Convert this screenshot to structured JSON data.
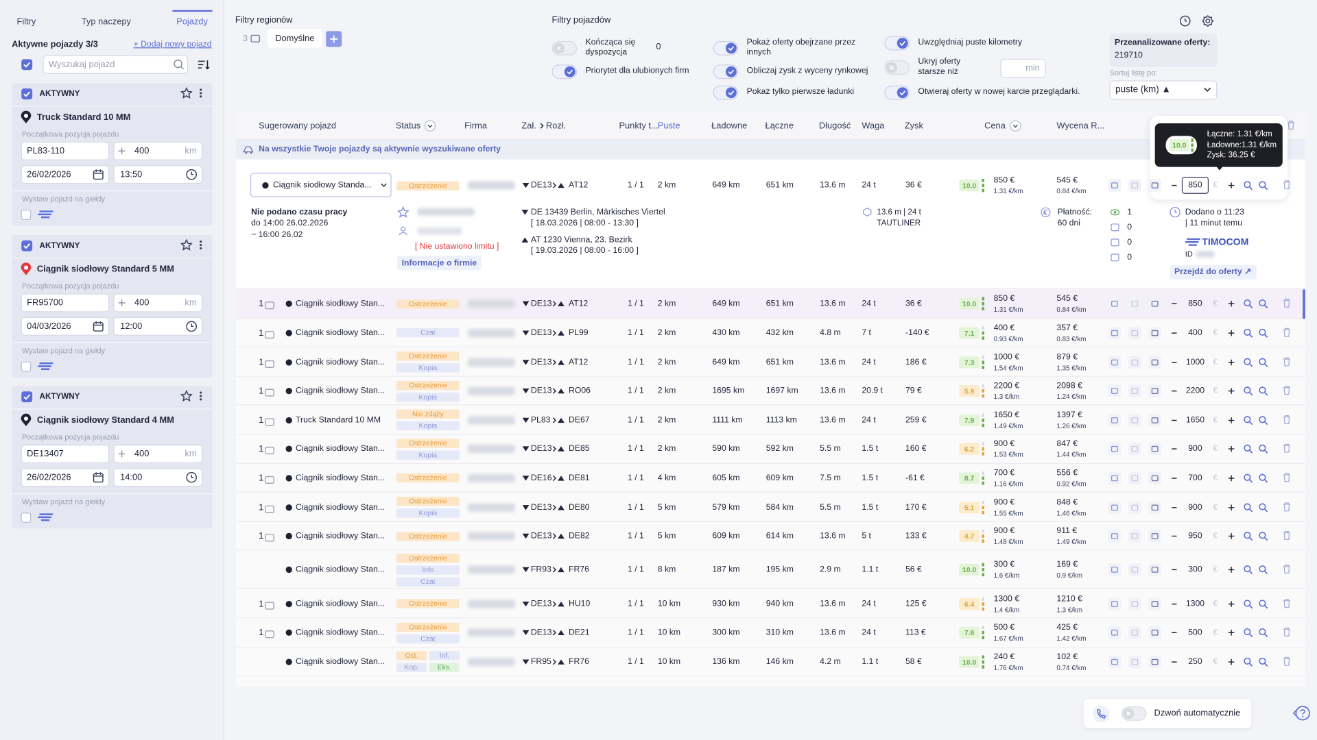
{
  "sidebar": {
    "tabs": [
      "Filtry",
      "Typ naczepy",
      "Pojazdy"
    ],
    "active_vehicles": "Aktywne pojazdy 3/3",
    "add_vehicle": "+ Dodaj nowy pojazd",
    "search_placeholder": "Wyszukaj pojazd",
    "vehicles": [
      {
        "status": "AKTYWNY",
        "name": "Truck Standard 10 MM",
        "pin_color": "#1f2233",
        "position_label": "Początkowa pozycja pojazdu",
        "postcode": "PL83-110",
        "radius": "400",
        "unit": "km",
        "date": "26/02/2026",
        "time": "13:50",
        "exchange_label": "Wystaw pojazd na giełdy"
      },
      {
        "status": "AKTYWNY",
        "name": "Ciągnik siodłowy Standard 5 MM",
        "pin_color": "#e0393e",
        "position_label": "Początkowa pozycja pojazdu",
        "postcode": "FR95700",
        "radius": "400",
        "unit": "km",
        "date": "04/03/2026",
        "time": "12:00",
        "exchange_label": "Wystaw pojazd na giełdy"
      },
      {
        "status": "AKTYWNY",
        "name": "Ciągnik siodłowy Standard 4 MM",
        "pin_color": "#1f2233",
        "position_label": "Początkowa pozycja pojazdu",
        "postcode": "DE13407",
        "radius": "400",
        "unit": "km",
        "date": "26/02/2026",
        "time": "14:00",
        "exchange_label": "Wystaw pojazd na giełdy"
      }
    ]
  },
  "filters": {
    "regions_title": "Filtry regionów",
    "region_count": "3",
    "region_name": "Domyślne",
    "vehicles_title": "Filtry pojazdów",
    "options": [
      {
        "label": "Kończąca się dyspozycja",
        "checked": false
      },
      {
        "label": "Priorytet dla ulubionych firm",
        "checked": true
      },
      {
        "label": "Pokaż oferty obejrzane przez innych",
        "checked": true
      },
      {
        "label": "Obliczaj zysk z wyceny rynkowej",
        "checked": true
      },
      {
        "label": "Pokaż tylko pierwsze ładunki",
        "checked": true
      },
      {
        "label": "Uwzględniaj puste kilometry",
        "checked": true
      },
      {
        "label": "Ukryj oferty starsze niż",
        "checked": false
      },
      {
        "label": "Otwieraj oferty w nowej karcie przeglądarki.",
        "checked": true
      }
    ],
    "ending_value": "0",
    "older_unit": "min",
    "analyzed_label": "Przeanalizowane oferty:",
    "analyzed_value": "219710",
    "sort_label": "Sortuj listę po:",
    "sort_value": "puste (km) ▲"
  },
  "table": {
    "headers": [
      "Sugerowany pojazd",
      "Status",
      "Firma",
      "Zał.",
      "Rozł.",
      "Punkty t...",
      "Puste",
      "Ładowne",
      "Łączne",
      "Długość",
      "Waga",
      "Zysk",
      "Cena",
      "Wycena R..."
    ],
    "notice": "Na wszystkie Twoje pojazdy są aktywnie wyszukiwane oferty",
    "currency": "€",
    "expanded": {
      "vehicle": "Ciągnik siodłowy Standa...",
      "statuses": [
        "Ostrzeżenie"
      ],
      "from": "DE13",
      "to": "AT12",
      "points": "1 / 1",
      "empty": "2 km",
      "loaded": "649 km",
      "total": "651 km",
      "length": "13.6 m",
      "weight": "24 t",
      "profit": "36 €",
      "score": "10.0",
      "price": "850 €",
      "price_per_km": "1.31 €/km",
      "valuation": "545 €",
      "valuation_per_km": "0.84 €/km",
      "offer": "850",
      "work_time": "Nie podano czasu pracy",
      "work_until": "do 14:00 26.02.2026",
      "work_eta": "~ 16:00 26.02",
      "limit": "[ Nie ustawiono limitu ]",
      "company_info": "Informacje o firmie",
      "load_place": "DE 13439 Berlin, Märkisches Viertel",
      "load_date": "[ 18.03.2026 | 08:00 - 13:30 ]",
      "unload_place": "AT 1230 Vienna, 23. Bezirk",
      "unload_date": "[ 19.03.2026 | 08:00 - 16:00 ]",
      "cargo": "13.6 m | 24 t",
      "trailer": "TAUTLINER",
      "payment_label": "Płatność:",
      "payment_value": "60 dni",
      "counters": [
        "1",
        "0",
        "0",
        "0"
      ],
      "added": "Dodano o 11:23",
      "added_ago": "| 11 minut temu",
      "exchange": "TIMOCOM",
      "id_label": "ID",
      "open_offer": "Przejdź do oferty ↗"
    },
    "tooltip": {
      "score": "10.0",
      "total": "Łączne: 1.31 €/km",
      "loaded": "Ładowne:1.31 €/km",
      "profit": "Zysk: 36.25 €"
    },
    "rows": [
      {
        "count": "1",
        "vehicle": "Ciągnik siodłowy Stan...",
        "statuses": [
          "Ostrzeżenie"
        ],
        "from": "DE13",
        "to": "AT12",
        "points": "1 / 1",
        "empty": "2 km",
        "loaded": "649 km",
        "total": "651 km",
        "length": "13.6 m",
        "weight": "24 t",
        "profit": "36 €",
        "score": "10.0",
        "price": "850 €",
        "price_per_km": "1.31 €/km",
        "valuation": "545 €",
        "valuation_per_km": "0.84 €/km",
        "offer": "850"
      },
      {
        "count": "1",
        "vehicle": "Ciągnik siodłowy Stan...",
        "statuses": [
          "Czat"
        ],
        "from": "DE13",
        "to": "PL99",
        "points": "1 / 1",
        "empty": "2 km",
        "loaded": "430 km",
        "total": "432 km",
        "length": "4.8 m",
        "weight": "7 t",
        "profit": "-140 €",
        "score": "7.1",
        "price": "400 €",
        "price_per_km": "0.93 €/km",
        "valuation": "357 €",
        "valuation_per_km": "0.83 €/km",
        "offer": "400"
      },
      {
        "count": "1",
        "vehicle": "Ciągnik siodłowy Stan...",
        "statuses": [
          "Ostrzeżenie",
          "Kopia"
        ],
        "from": "DE13",
        "to": "AT12",
        "points": "1 / 1",
        "empty": "2 km",
        "loaded": "649 km",
        "total": "651 km",
        "length": "13.6 m",
        "weight": "24 t",
        "profit": "186 €",
        "score": "7.3",
        "price": "1000 €",
        "price_per_km": "1.54 €/km",
        "valuation": "879 €",
        "valuation_per_km": "1.35 €/km",
        "offer": "1000"
      },
      {
        "count": "1",
        "vehicle": "Ciągnik siodłowy Stan...",
        "statuses": [
          "Ostrzeżenie",
          "Kopia"
        ],
        "from": "DE13",
        "to": "RO06",
        "points": "1 / 1",
        "empty": "2 km",
        "loaded": "1695 km",
        "total": "1697 km",
        "length": "13.6 m",
        "weight": "20.9 t",
        "profit": "79 €",
        "score": "5.9",
        "price": "2200 €",
        "price_per_km": "1.3 €/km",
        "valuation": "2098 €",
        "valuation_per_km": "1.24 €/km",
        "offer": "2200"
      },
      {
        "count": "1",
        "vehicle": "Truck Standard 10 MM",
        "statuses": [
          "Nie zdąży",
          "Kopia"
        ],
        "from": "PL83",
        "to": "DE67",
        "points": "1 / 1",
        "empty": "2 km",
        "loaded": "1111 km",
        "total": "1113 km",
        "length": "13.6 m",
        "weight": "24 t",
        "profit": "259 €",
        "score": "7.9",
        "price": "1650 €",
        "price_per_km": "1.49 €/km",
        "valuation": "1397 €",
        "valuation_per_km": "1.26 €/km",
        "offer": "1650"
      },
      {
        "count": "1",
        "vehicle": "Ciągnik siodłowy Stan...",
        "statuses": [
          "Ostrzeżenie",
          "Kopia"
        ],
        "from": "DE13",
        "to": "DE85",
        "points": "1 / 1",
        "empty": "2 km",
        "loaded": "590 km",
        "total": "592 km",
        "length": "5.5 m",
        "weight": "1.5 t",
        "profit": "160 €",
        "score": "6.2",
        "price": "900 €",
        "price_per_km": "1.53 €/km",
        "valuation": "847 €",
        "valuation_per_km": "1.44 €/km",
        "offer": "900"
      },
      {
        "count": "1",
        "vehicle": "Ciągnik siodłowy Stan...",
        "statuses": [
          "Ostrzeżenie"
        ],
        "from": "DE16",
        "to": "DE81",
        "points": "1 / 1",
        "empty": "4 km",
        "loaded": "605 km",
        "total": "609 km",
        "length": "7.5 m",
        "weight": "1.5 t",
        "profit": "-61 €",
        "score": "8.7",
        "price": "700 €",
        "price_per_km": "1.16 €/km",
        "valuation": "556 €",
        "valuation_per_km": "0.92 €/km",
        "offer": "700"
      },
      {
        "count": "1",
        "vehicle": "Ciągnik siodłowy Stan...",
        "statuses": [
          "Ostrzeżenie",
          "Kopia"
        ],
        "from": "DE13",
        "to": "DE80",
        "points": "1 / 1",
        "empty": "5 km",
        "loaded": "579 km",
        "total": "584 km",
        "length": "5.5 m",
        "weight": "1.5 t",
        "profit": "170 €",
        "score": "5.1",
        "price": "900 €",
        "price_per_km": "1.55 €/km",
        "valuation": "848 €",
        "valuation_per_km": "1.46 €/km",
        "offer": "900"
      },
      {
        "count": "1",
        "vehicle": "Ciągnik siodłowy Stan...",
        "statuses": [
          "Ostrzeżenie"
        ],
        "from": "DE13",
        "to": "DE82",
        "points": "1 / 1",
        "empty": "5 km",
        "loaded": "609 km",
        "total": "614 km",
        "length": "13.6 m",
        "weight": "5 t",
        "profit": "133 €",
        "score": "4.7",
        "price": "900 €",
        "price_per_km": "1.48 €/km",
        "valuation": "911 €",
        "valuation_per_km": "1.49 €/km",
        "offer": "950"
      },
      {
        "count": null,
        "vehicle": "Ciągnik siodłowy Stan...",
        "statuses": [
          "Ostrzeżenie",
          "Info",
          "Czat"
        ],
        "from": "FR93",
        "to": "FR76",
        "points": "1 / 1",
        "empty": "8 km",
        "loaded": "187 km",
        "total": "195 km",
        "length": "2.9 m",
        "weight": "1.1 t",
        "profit": "56 €",
        "score": "10.0",
        "price": "300 €",
        "price_per_km": "1.6 €/km",
        "valuation": "169 €",
        "valuation_per_km": "0.9 €/km",
        "offer": "300"
      },
      {
        "count": "1",
        "vehicle": "Ciągnik siodłowy Stan...",
        "statuses": [
          "Ostrzeżenie"
        ],
        "from": "DE13",
        "to": "HU10",
        "points": "1 / 1",
        "empty": "10 km",
        "loaded": "930 km",
        "total": "940 km",
        "length": "13.6 m",
        "weight": "24 t",
        "profit": "125 €",
        "score": "6.4",
        "price": "1300 €",
        "price_per_km": "1.4 €/km",
        "valuation": "1210 €",
        "valuation_per_km": "1.3 €/km",
        "offer": "1300"
      },
      {
        "count": "1",
        "vehicle": "Ciągnik siodłowy Stan...",
        "statuses": [
          "Ostrzeżenie",
          "Czat"
        ],
        "from": "DE13",
        "to": "DE21",
        "points": "1 / 1",
        "empty": "10 km",
        "loaded": "300 km",
        "total": "310 km",
        "length": "13.6 m",
        "weight": "24 t",
        "profit": "113 €",
        "score": "7.8",
        "price": "500 €",
        "price_per_km": "1.67 €/km",
        "valuation": "425 €",
        "valuation_per_km": "1.42 €/km",
        "offer": "500"
      },
      {
        "count": null,
        "vehicle": "Ciągnik siodłowy Stan...",
        "statuses": [
          "Ost.",
          "Inf.",
          "Kop.",
          "Eks."
        ],
        "from": "FR95",
        "to": "FR76",
        "points": "1 / 1",
        "empty": "10 km",
        "loaded": "136 km",
        "total": "146 km",
        "length": "4.2 m",
        "weight": "1.1 t",
        "profit": "58 €",
        "score": "10.0",
        "price": "240 €",
        "price_per_km": "1.76 €/km",
        "valuation": "102 €",
        "valuation_per_km": "0.74 €/km",
        "offer": "250"
      }
    ]
  },
  "footer": {
    "auto_call": "Dzwoń automatycznie"
  }
}
